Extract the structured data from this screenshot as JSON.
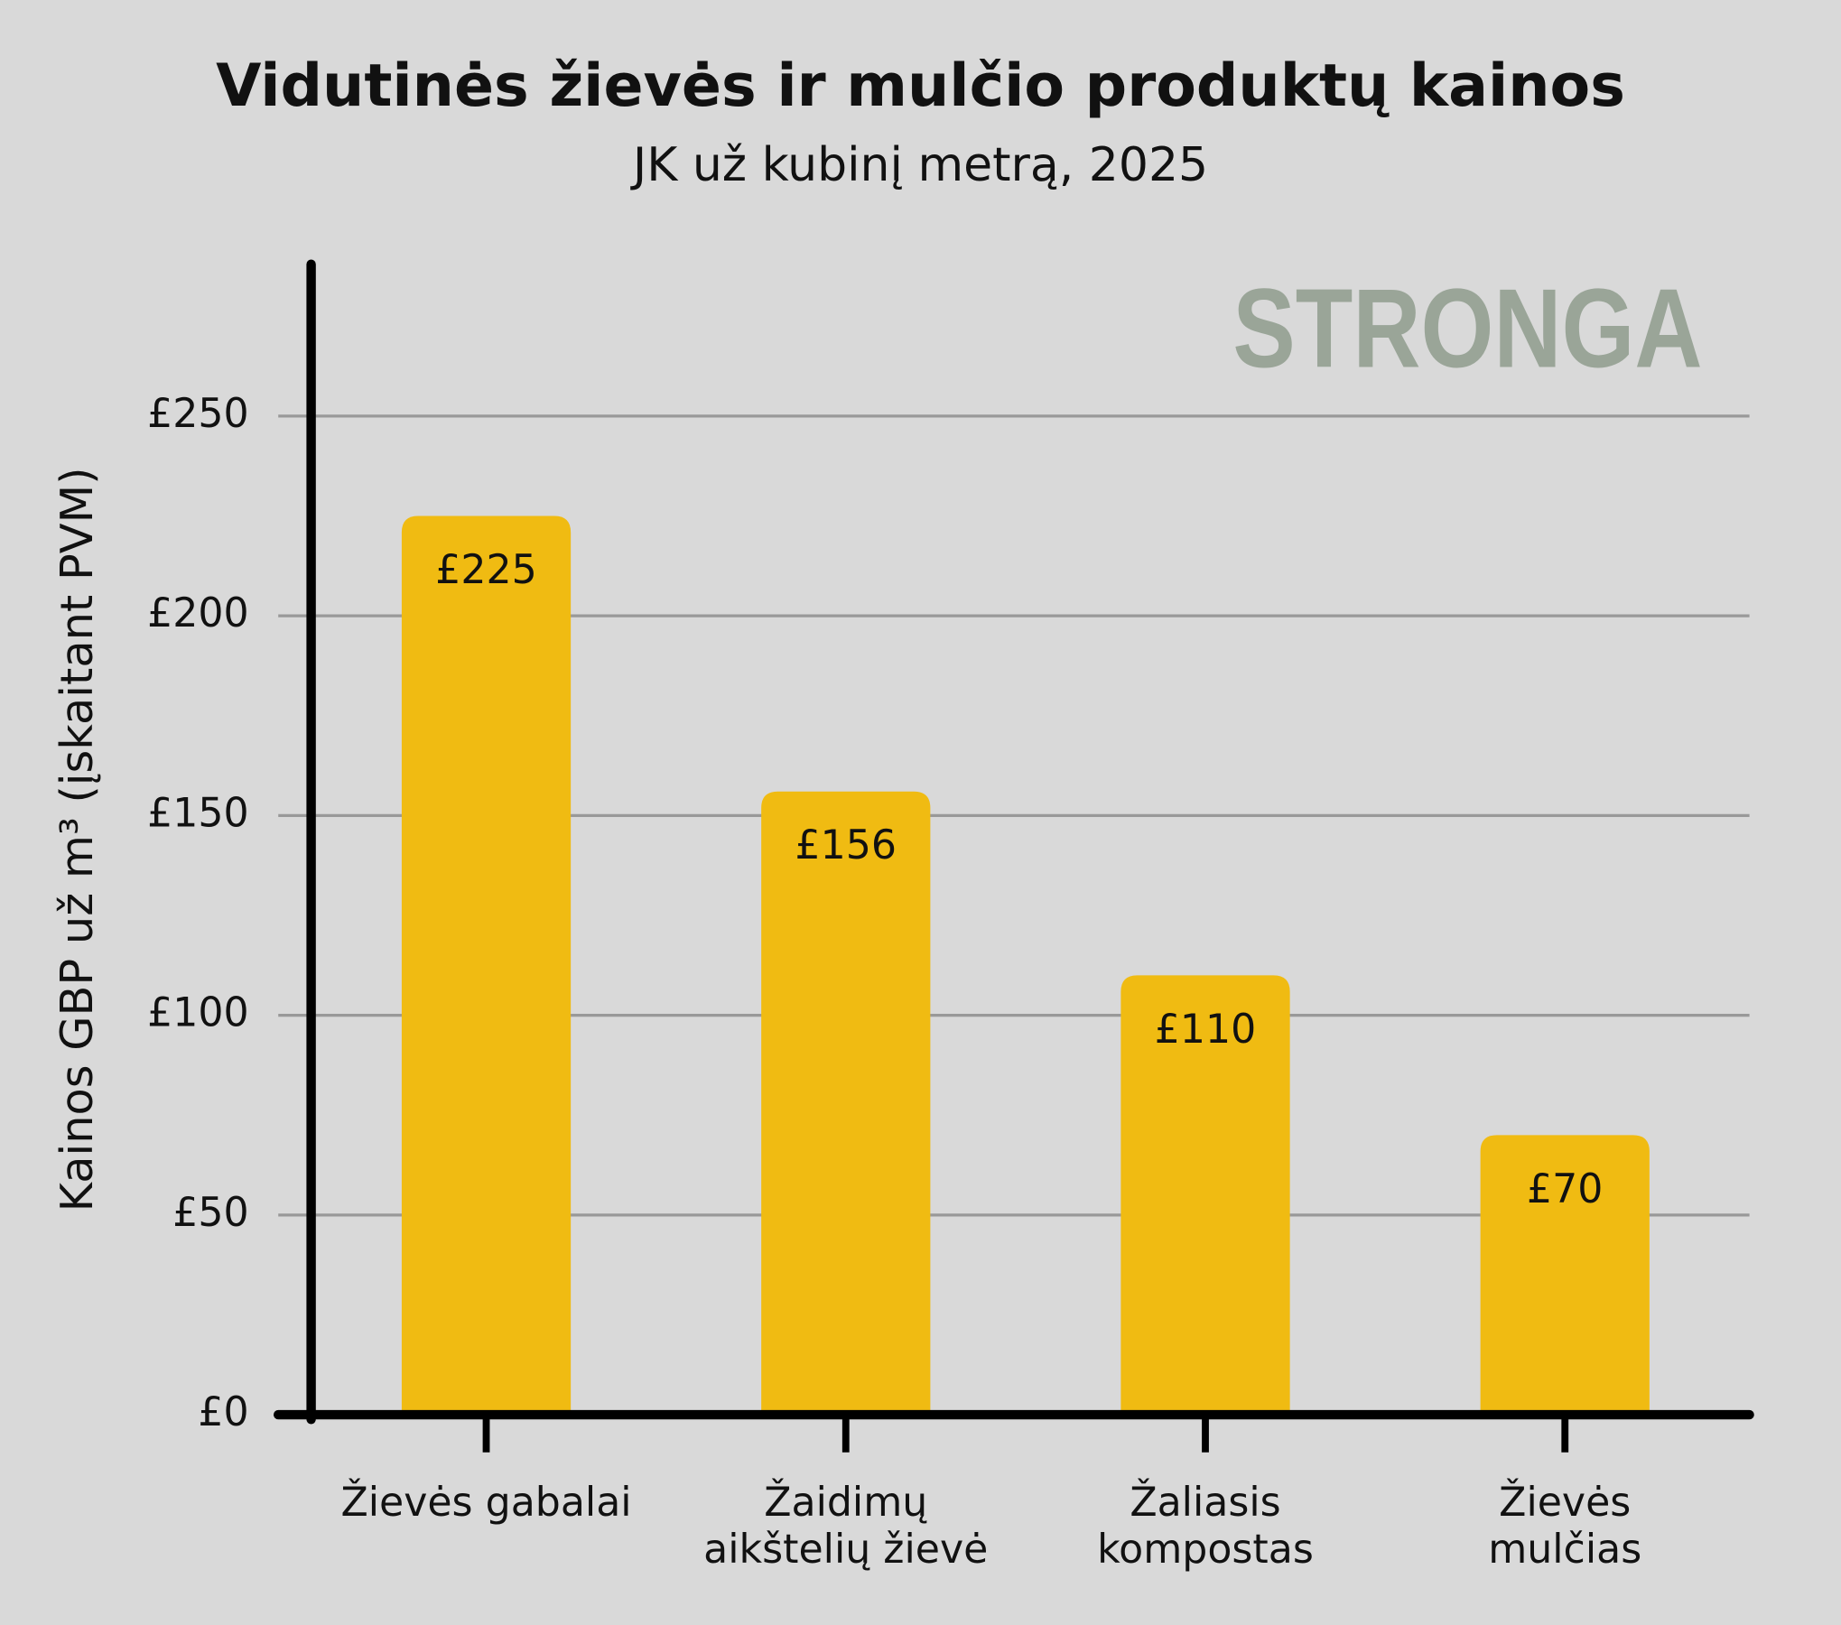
{
  "chart_data": {
    "type": "bar",
    "title": "Vidutinės žievės ir mulčio produktų kainos",
    "subtitle": "JK už kubinį metrą, 2025",
    "y_label": "Kainos GBP už m³ (įskaitant PVM)",
    "watermark": "STRONGA",
    "categories": [
      "Žievės gabalai",
      "Žaidimų\naikštelių žievė",
      "Žaliasis\nkompostas",
      "Žievės\nmulčias"
    ],
    "values": [
      225,
      156,
      110,
      70
    ],
    "value_labels": [
      "£225",
      "£156",
      "£110",
      "£70"
    ],
    "color": "#f0bb12",
    "ylim": [
      0,
      288
    ],
    "yticks": [
      {
        "value": 0,
        "label": "£0"
      },
      {
        "value": 50,
        "label": "£50"
      },
      {
        "value": 100,
        "label": "£100"
      },
      {
        "value": 150,
        "label": "£150"
      },
      {
        "value": 200,
        "label": "£200"
      },
      {
        "value": 250,
        "label": "£250"
      }
    ],
    "grid": true
  }
}
